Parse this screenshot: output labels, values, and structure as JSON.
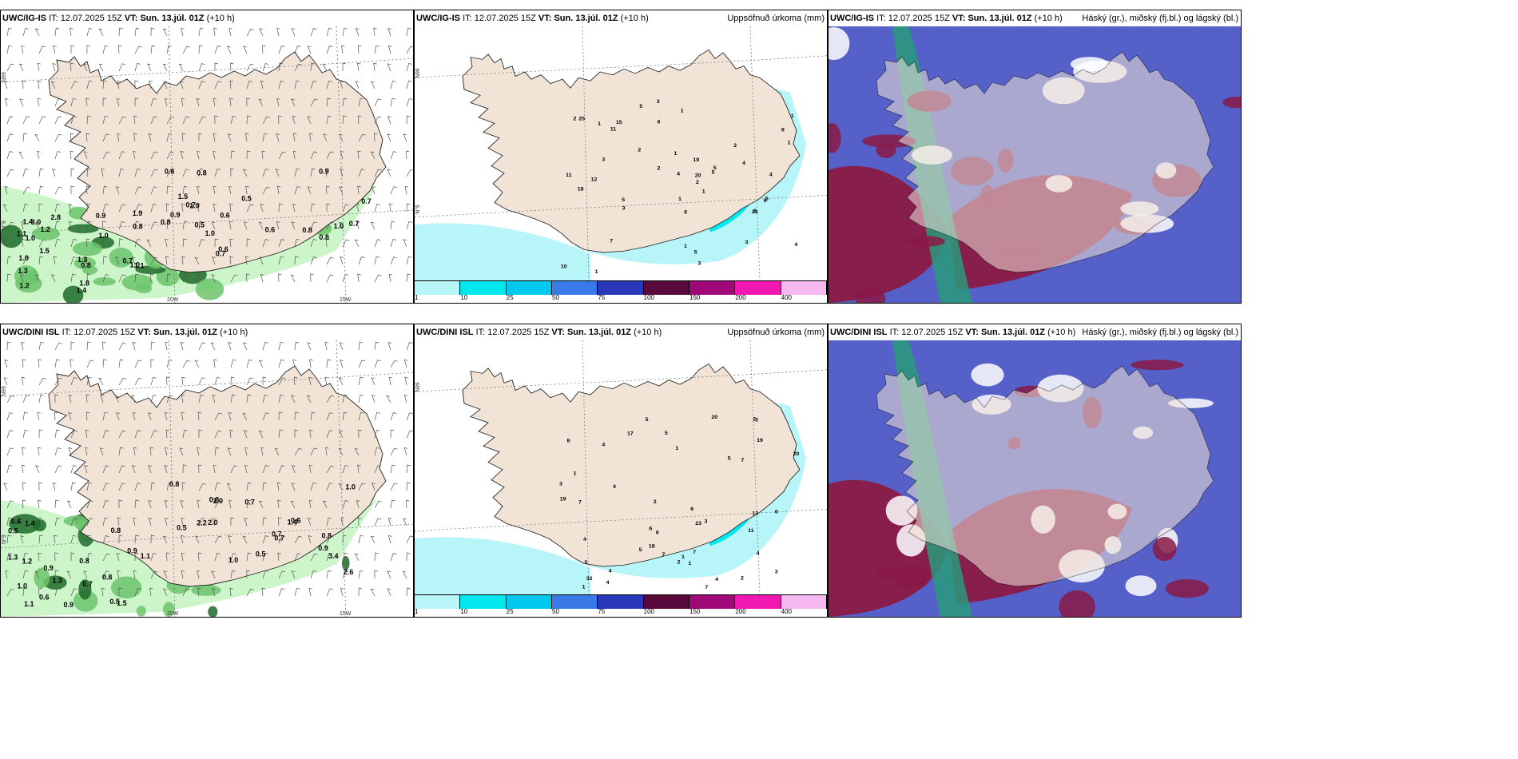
{
  "panels": [
    {
      "model": "UWC/IG-IS",
      "it_label": "IT:",
      "it_value": "12.07.2025 15Z",
      "vt_label": "VT:",
      "vt_value": "Sun. 13.júl. 01Z",
      "lead": "(+10 h)",
      "right_title": "",
      "axis_labels": {
        "lat_left": "N99",
        "lat_mid": "N°9",
        "lon_1": "20W",
        "lon_2": "15W"
      },
      "precip_labels": [
        "1.0",
        "1.3",
        "1.1",
        "1.4",
        "1.5",
        "1.9",
        "1.8",
        "1.3",
        "0.7",
        "0.8",
        "1.0",
        "1.2",
        "1.1",
        "0.9",
        "1.0",
        "0.8",
        "1.4",
        "3.0",
        "1.0",
        "1.2",
        "2.8",
        "1.5",
        "1.0",
        "0.6",
        "0.9",
        "0.8",
        "0.6",
        "0.8",
        "0.7",
        "0.7",
        "0.6",
        "0.6",
        "0.7",
        "1.0",
        "0.8",
        "0.9",
        "1.0",
        "0.8",
        "0.5",
        "0.5",
        "0.7"
      ]
    },
    {
      "model": "UWC/IG-IS",
      "it_label": "IT:",
      "it_value": "12.07.2025 15Z",
      "vt_label": "VT:",
      "vt_value": "Sun. 13.júl. 01Z",
      "lead": "(+10 h)",
      "right_title": "Uppsöfnuð úrkoma (mm)",
      "axis_labels": {
        "lat_left": "N99",
        "lat_mid": "N°9",
        "lon_1": "",
        "lon_2": ""
      },
      "precip_labels": [
        "1",
        "2",
        "9",
        "3",
        "2",
        "2",
        "5",
        "5",
        "6",
        "4",
        "4",
        "5",
        "7",
        "5",
        "6",
        "4",
        "3",
        "1",
        "1",
        "2",
        "5",
        "1",
        "3",
        "10",
        "15",
        "12",
        "18",
        "25",
        "20",
        "23",
        "11",
        "11",
        "6",
        "2",
        "3",
        "5",
        "19",
        "1",
        "3",
        "1",
        "4",
        "1",
        "1",
        "1",
        "1"
      ],
      "scale_ticks": [
        "1",
        "10",
        "25",
        "50",
        "75",
        "100",
        "150",
        "200",
        "400"
      ],
      "scale_colors": [
        "#b8f5f8",
        "#00e8ee",
        "#00c8ee",
        "#3a7ae8",
        "#2838b8",
        "#5a0a3a",
        "#a0087a",
        "#f018b0",
        "#f5b8f0"
      ]
    },
    {
      "model": "UWC/IG-IS",
      "it_label": "IT:",
      "it_value": "12.07.2025 15Z",
      "vt_label": "VT:",
      "vt_value": "Sun. 13.júl. 01Z",
      "lead": "(+10 h)",
      "right_title": "Háský (gr.), miðský (fj.bl.) og lágský (bl.)",
      "axis_labels": {
        "lat_left": "",
        "lat_mid": "",
        "lon_1": "",
        "lon_2": ""
      },
      "precip_labels": []
    },
    {
      "model": "UWC/DINI ISL",
      "it_label": "IT:",
      "it_value": "12.07.2025 15Z",
      "vt_label": "VT:",
      "vt_value": "Sun. 13.júl. 01Z",
      "lead": "(+10 h)",
      "right_title": "",
      "axis_labels": {
        "lat_left": "N99",
        "lat_mid": "N°9",
        "lon_1": "20W",
        "lon_2": "15W"
      },
      "precip_labels": [
        "1.3",
        "1.1",
        "0.5",
        "0.8",
        "0.9",
        "0.8",
        "1.3",
        "1.1",
        "1.2",
        "1.5",
        "0.9",
        "0.7",
        "0.6",
        "0.8",
        "1.0",
        "0.9",
        "1.4",
        "0.6",
        "0.5",
        "0.7",
        "2.0",
        "1.0",
        "0.5",
        "0.5",
        "0.6",
        "0.8",
        "0.8",
        "1.0",
        "0.8",
        "1.0",
        "0.7",
        "1.4",
        "0.9",
        "3.4",
        "2.6",
        "2.2",
        "0.7"
      ]
    },
    {
      "model": "UWC/DINI ISL",
      "it_label": "IT:",
      "it_value": "12.07.2025 15Z",
      "vt_label": "VT:",
      "vt_value": "Sun. 13.júl. 01Z",
      "lead": "(+10 h)",
      "right_title": "Uppsöfnuð úrkoma (mm)",
      "axis_labels": {
        "lat_left": "N99",
        "lat_mid": "",
        "lon_1": "",
        "lon_2": ""
      },
      "precip_labels": [
        "5",
        "1",
        "1",
        "2",
        "7",
        "1",
        "4",
        "3",
        "4",
        "4",
        "3",
        "3",
        "5",
        "2",
        "6",
        "6",
        "11",
        "7",
        "7",
        "8",
        "4",
        "6",
        "4",
        "4",
        "3",
        "2",
        "2",
        "5",
        "6",
        "7",
        "17",
        "13",
        "18",
        "19",
        "32",
        "20",
        "19",
        "20",
        "23",
        "7",
        "5",
        "1",
        "5",
        "4",
        "1"
      ],
      "scale_ticks": [
        "1",
        "10",
        "25",
        "50",
        "75",
        "100",
        "150",
        "200",
        "400"
      ],
      "scale_colors": [
        "#b8f5f8",
        "#00e8ee",
        "#00c8ee",
        "#3a7ae8",
        "#2838b8",
        "#5a0a3a",
        "#a0087a",
        "#f018b0",
        "#f5b8f0"
      ]
    },
    {
      "model": "UWC/DINI ISL",
      "it_label": "IT:",
      "it_value": "12.07.2025 15Z",
      "vt_label": "VT:",
      "vt_value": "Sun. 13.júl. 01Z",
      "lead": "(+10 h)",
      "right_title": "Háský (gr.), miðský (fj.bl.) og lágský (bl.)",
      "axis_labels": {
        "lat_left": "",
        "lat_mid": "",
        "lon_1": "",
        "lon_2": ""
      },
      "precip_labels": []
    }
  ],
  "colors": {
    "land": "#f1e3d6",
    "coast": "#222222",
    "precip_light": "#c8f4c4",
    "precip_mid": "#6cc46c",
    "precip_dark": "#1d6a2a",
    "accum_light": "#b8f5f8",
    "accum_mid": "#00e8ee",
    "cloud_high": "#8a1a46",
    "cloud_mid": "#5560c8",
    "cloud_low": "#2a9a7a"
  }
}
